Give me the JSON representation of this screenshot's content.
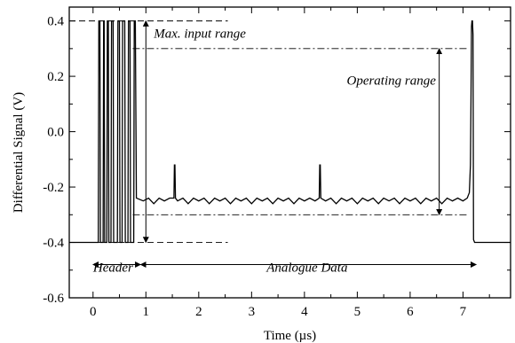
{
  "chart_data": {
    "type": "line",
    "xlabel": "Time (µs)",
    "ylabel": "Differential Signal (V)",
    "xlim": [
      -0.45,
      7.9
    ],
    "ylim": [
      -0.6,
      0.45
    ],
    "x_ticks": [
      0,
      1,
      2,
      3,
      4,
      5,
      6,
      7
    ],
    "x_tick_labels": [
      "0",
      "1",
      "2",
      "3",
      "4",
      "5",
      "6",
      "7"
    ],
    "y_ticks": [
      -0.6,
      -0.4,
      -0.2,
      0.0,
      0.2,
      0.4
    ],
    "y_tick_labels": [
      "-0.6",
      "-0.4",
      "-0.2",
      "0.0",
      "0.2",
      "0.4"
    ],
    "grid": false,
    "series": [
      {
        "x": [
          -0.45,
          0.1,
          0.11,
          0.13,
          0.14,
          0.19,
          0.2,
          0.21,
          0.22,
          0.26,
          0.27,
          0.29,
          0.3,
          0.34,
          0.35,
          0.38,
          0.39,
          0.46,
          0.47,
          0.5,
          0.51,
          0.55,
          0.56,
          0.6,
          0.61,
          0.66,
          0.67,
          0.7,
          0.71,
          0.77,
          0.78,
          0.8,
          0.82,
          0.95,
          1.05,
          1.15,
          1.25,
          1.35,
          1.45,
          1.53,
          1.54,
          1.55,
          1.56,
          1.6,
          1.7,
          1.8,
          1.9,
          2.0,
          2.1,
          2.2,
          2.3,
          2.4,
          2.5,
          2.6,
          2.7,
          2.8,
          2.9,
          3.0,
          3.1,
          3.2,
          3.3,
          3.4,
          3.5,
          3.6,
          3.7,
          3.8,
          3.9,
          4.0,
          4.1,
          4.2,
          4.28,
          4.29,
          4.3,
          4.31,
          4.4,
          4.5,
          4.6,
          4.7,
          4.8,
          4.9,
          5.0,
          5.1,
          5.2,
          5.3,
          5.4,
          5.5,
          5.6,
          5.7,
          5.8,
          5.9,
          6.0,
          6.1,
          6.2,
          6.3,
          6.4,
          6.5,
          6.6,
          6.7,
          6.8,
          6.9,
          7.0,
          7.08,
          7.12,
          7.14,
          7.15,
          7.16,
          7.17,
          7.18,
          7.19,
          7.2,
          7.22,
          7.9
        ],
        "y": [
          -0.4,
          -0.4,
          0.4,
          0.4,
          -0.4,
          -0.4,
          0.4,
          0.4,
          -0.4,
          -0.4,
          0.4,
          0.4,
          -0.4,
          -0.4,
          0.4,
          0.4,
          -0.4,
          -0.4,
          0.4,
          0.4,
          -0.4,
          -0.4,
          0.4,
          0.4,
          -0.4,
          -0.4,
          0.4,
          0.4,
          -0.4,
          -0.4,
          0.4,
          0.4,
          -0.24,
          -0.25,
          -0.24,
          -0.26,
          -0.24,
          -0.25,
          -0.24,
          -0.24,
          -0.12,
          -0.12,
          -0.24,
          -0.25,
          -0.24,
          -0.26,
          -0.24,
          -0.25,
          -0.24,
          -0.26,
          -0.24,
          -0.25,
          -0.24,
          -0.26,
          -0.24,
          -0.25,
          -0.24,
          -0.26,
          -0.24,
          -0.25,
          -0.24,
          -0.26,
          -0.24,
          -0.25,
          -0.24,
          -0.26,
          -0.24,
          -0.25,
          -0.24,
          -0.25,
          -0.24,
          -0.12,
          -0.12,
          -0.24,
          -0.25,
          -0.24,
          -0.26,
          -0.24,
          -0.25,
          -0.24,
          -0.26,
          -0.24,
          -0.25,
          -0.24,
          -0.26,
          -0.24,
          -0.25,
          -0.24,
          -0.26,
          -0.24,
          -0.25,
          -0.24,
          -0.26,
          -0.24,
          -0.25,
          -0.24,
          -0.26,
          -0.24,
          -0.25,
          -0.24,
          -0.25,
          -0.24,
          -0.22,
          -0.12,
          0.1,
          0.38,
          0.4,
          0.4,
          0.35,
          -0.39,
          -0.4,
          -0.4
        ]
      }
    ],
    "reference_lines": [
      {
        "y": 0.4,
        "x_from": -0.45,
        "x_to": 2.55,
        "style": "dashed"
      },
      {
        "y": -0.4,
        "x_from": -0.45,
        "x_to": 2.55,
        "style": "dashed"
      },
      {
        "y": 0.3,
        "x_from": 0.75,
        "x_to": 7.1,
        "style": "dash-dot"
      },
      {
        "y": -0.3,
        "x_from": 0.75,
        "x_to": 7.1,
        "style": "dash-dot"
      }
    ],
    "annotations": [
      {
        "text": "Max. input range",
        "x": 1.15,
        "y": 0.34
      },
      {
        "text": "Operating range",
        "x": 4.8,
        "y": 0.17
      },
      {
        "text": "Header",
        "x": 0.38,
        "y": -0.505
      },
      {
        "text": "Analogue Data",
        "x": 4.05,
        "y": -0.505
      }
    ],
    "arrows": [
      {
        "name": "max-input-range-arrow",
        "x1": 1.0,
        "y1": 0.4,
        "x2": 1.0,
        "y2": -0.4
      },
      {
        "name": "operating-range-arrow",
        "x1": 6.55,
        "y1": 0.3,
        "x2": 6.55,
        "y2": -0.3
      },
      {
        "name": "header-arrow",
        "x1": 0.0,
        "y1": -0.48,
        "x2": 0.9,
        "y2": -0.48
      },
      {
        "name": "analogue-data-arrow",
        "x1": 0.9,
        "y1": -0.48,
        "x2": 7.25,
        "y2": -0.48
      }
    ]
  }
}
